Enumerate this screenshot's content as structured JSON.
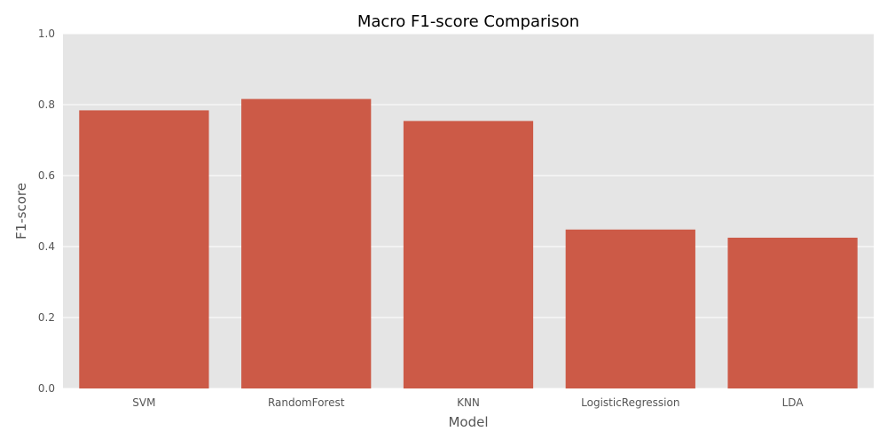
{
  "chart_data": {
    "type": "bar",
    "title": "Macro F1-score Comparison",
    "xlabel": "Model",
    "ylabel": "F1-score",
    "categories": [
      "SVM",
      "RandomForest",
      "KNN",
      "LogisticRegression",
      "LDA"
    ],
    "values": [
      0.784,
      0.816,
      0.754,
      0.448,
      0.425
    ],
    "ylim": [
      0,
      1
    ],
    "yticks": [
      "0.0",
      "0.2",
      "0.4",
      "0.6",
      "0.8",
      "1.0"
    ],
    "grid": true,
    "colors": {
      "bar": "#cc5a47",
      "plot_background": "#e5e5e5",
      "grid": "#ffffff"
    }
  }
}
